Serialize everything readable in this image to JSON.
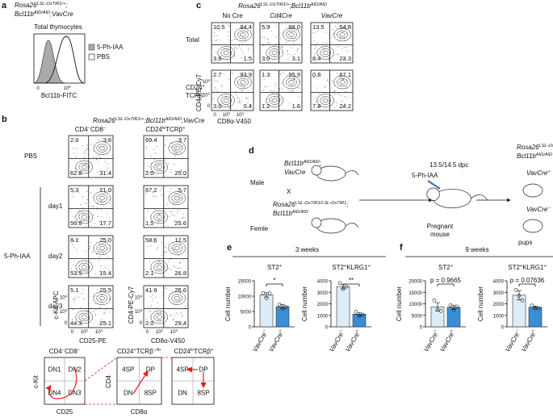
{
  "a": {
    "label": "a",
    "genotype": [
      [
        "Rosa26",
        "LSL-OsTIR1/+",
        ";"
      ],
      [
        "Bcl11b",
        "AID/AID",
        ";VavCre"
      ]
    ],
    "title": "Total thymocytes",
    "xlabel": "Bcl11b-FITC",
    "xticks": [
      [
        "0"
      ],
      [
        "10",
        "3"
      ]
    ],
    "legend": [
      "5-Ph-IAA",
      "PBS"
    ]
  },
  "b": {
    "label": "b",
    "genotype": [
      "Rosa26",
      "LSL-OsTIR1/+",
      ";Bcl11b",
      "AID/AID",
      ";VavCre"
    ],
    "columns": [
      [
        "CD4",
        "−",
        "CD8",
        "−"
      ],
      [
        "CD24",
        "lo",
        "TCRβ",
        "+"
      ]
    ],
    "treatment": "5-Ph-IAA",
    "rows": [
      {
        "label": "PBS",
        "quadrants": [
          [
            "2.0",
            "3.8",
            "62.8",
            "31.4"
          ],
          [
            "69.4",
            "3.7",
            "2.0",
            "25.0"
          ]
        ]
      },
      {
        "label": "day1",
        "quadrants": [
          [
            "5.3",
            "21.0",
            "56.0",
            "17.7"
          ],
          [
            "67.2",
            "5.7",
            "1.5",
            "25.6"
          ]
        ]
      },
      {
        "label": "day2",
        "quadrants": [
          [
            "6.1",
            "25.0",
            "53.5",
            "15.4"
          ],
          [
            "58.6",
            "12.5",
            "2.1",
            "26.8"
          ]
        ]
      },
      {
        "label": "day3",
        "quadrants": [
          [
            "5.1",
            "25.5",
            "44.3",
            "25.1"
          ],
          [
            "41.9",
            "26.6",
            "2.0",
            "29.4"
          ]
        ]
      }
    ],
    "axes": [
      {
        "y": "c-Kit-APC",
        "x": "CD25-PE"
      },
      {
        "y": "CD4-PE-Cy7",
        "x": "CD8α-V450"
      }
    ],
    "ticks": [
      [
        "0"
      ],
      [
        "10",
        "3"
      ],
      [
        "10",
        "4"
      ]
    ],
    "scheme": {
      "headers": [
        [
          "CD4",
          "−",
          "CD8",
          "−"
        ],
        [
          "CD24",
          "+",
          "TCRβ",
          "−/lo"
        ],
        [
          "CD24",
          "lo",
          "TCRβ",
          "+"
        ]
      ],
      "boxes": [
        [
          "DN1",
          "DN2",
          "DN4",
          "DN3"
        ],
        [
          "4SP",
          "DP",
          "DN",
          "8SP"
        ],
        [
          "4SP",
          "DP",
          "DN",
          "8SP"
        ]
      ],
      "axes": [
        {
          "y": "c-Kit",
          "x": "CD25"
        },
        {
          "y": "CD4",
          "x": "CD8α"
        }
      ]
    }
  },
  "c": {
    "label": "c",
    "genotype": [
      "Rosa26",
      "LSL-OsTIR1/+",
      ";Bcl11b",
      "AID/AID"
    ],
    "columns": [
      "No Cre",
      "Cd4Cre",
      "VavCre"
    ],
    "rows": [
      {
        "label": [
          [
            "Total"
          ]
        ],
        "quadrants": [
          [
            "10.5",
            "84.4",
            "3.6",
            "1.5"
          ],
          [
            "5.9",
            "88.0",
            "3.0",
            "3.1"
          ],
          [
            "13.5",
            "54.8",
            "8.4",
            "23.3"
          ]
        ]
      },
      {
        "label": [
          [
            "CD24",
            "+"
          ],
          [
            "TCRβ",
            "−"
          ]
        ],
        "quadrants": [
          [
            "2.7",
            "93.9",
            "3.0",
            "0.4"
          ],
          [
            "1.3",
            "95.9",
            "1.2",
            "1.6"
          ],
          [
            "0.8",
            "67.1",
            "7.8",
            "24.2"
          ]
        ]
      }
    ],
    "ylabel": "CD4-PE-Cy7",
    "xlabel": "CD8α-V450",
    "ticks": [
      [
        "0"
      ],
      [
        "10",
        "3"
      ],
      [
        "10",
        "4"
      ]
    ]
  },
  "d": {
    "label": "d",
    "male": {
      "genotype": [
        [
          "Bcl11b",
          "AID/AID",
          ";"
        ],
        [
          "VavCre"
        ]
      ],
      "sex": "Male"
    },
    "cross": "X",
    "female": {
      "genotype": [
        [
          "Rosa26",
          "LSL-OsTIR1/LSL-OsTIR1",
          ";"
        ],
        [
          "Bcl11b",
          "AID/AID"
        ]
      ],
      "sex": "Femle"
    },
    "timing": "13.5/14.5 dpc",
    "treatment": "5-Ph-IAA",
    "mother": [
      "Pregnant",
      "mouse"
    ],
    "offspring": {
      "genotype": [
        [
          "Rosa26",
          "LSL-OsTIR1/+",
          ";"
        ],
        [
          "Bcl11b",
          "AID/AID"
        ]
      ],
      "groups": [
        [
          "VavCre",
          "+"
        ],
        [
          "VavCre",
          "−"
        ]
      ],
      "label": "pups"
    }
  },
  "e": {
    "label": "e",
    "header": "3 weeks",
    "colors": [
      "#dcedf9",
      "#3a8ed6"
    ],
    "charts": [
      {
        "title": [
          "ST2",
          "+"
        ],
        "ylabel": "Cell number",
        "ylim": [
          0,
          15000
        ],
        "yticks": [
          0,
          5000,
          10000,
          15000
        ],
        "categories": [
          [
            "VavCre",
            "−"
          ],
          [
            "VavCre",
            "+"
          ]
        ],
        "values": [
          10400,
          6600
        ],
        "errors": [
          700,
          700
        ],
        "points": [
          [
            11000,
            9300,
            10900
          ],
          [
            7300,
            6000,
            6400
          ]
        ],
        "annotation": "*"
      },
      {
        "title": [
          "ST2",
          "+",
          "KLRG1",
          "+"
        ],
        "ylabel": "Cell number",
        "ylim": [
          0,
          4000
        ],
        "yticks": [
          0,
          1000,
          2000,
          3000,
          4000
        ],
        "categories": [
          [
            "VavCre",
            "−"
          ],
          [
            "VavCre",
            "+"
          ]
        ],
        "values": [
          3500,
          1100
        ],
        "errors": [
          200,
          150
        ],
        "points": [
          [
            3800,
            3300,
            3500
          ],
          [
            1300,
            950,
            1050
          ]
        ],
        "annotation": "**"
      }
    ]
  },
  "f": {
    "label": "f",
    "header": "9 weeks",
    "colors": [
      "#dcedf9",
      "#3a8ed6"
    ],
    "charts": [
      {
        "title": [
          "ST2",
          "+"
        ],
        "ylabel": "Cell number",
        "ylim": [
          0,
          20000
        ],
        "yticks": [
          0,
          5000,
          10000,
          15000,
          20000
        ],
        "categories": [
          [
            "VavCre",
            "−"
          ],
          [
            "VavCre",
            "+"
          ]
        ],
        "values": [
          8700,
          8500
        ],
        "errors": [
          1800,
          900
        ],
        "points": [
          [
            11500,
            7500,
            6900
          ],
          [
            9400,
            7400,
            8800
          ]
        ],
        "annotation": "p = 0.9665"
      },
      {
        "title": [
          "ST2",
          "+",
          "KLRG1",
          "+"
        ],
        "ylabel": "Cell number",
        "ylim": [
          0,
          4000
        ],
        "yticks": [
          0,
          1000,
          2000,
          3000,
          4000
        ],
        "categories": [
          [
            "VavCre",
            "−"
          ],
          [
            "VavCre",
            "+"
          ]
        ],
        "values": [
          2750,
          1700
        ],
        "errors": [
          400,
          100
        ],
        "points": [
          [
            3200,
            2700,
            2300
          ],
          [
            1850,
            1600,
            1600
          ]
        ],
        "annotation": "p = 0.07636"
      }
    ]
  }
}
